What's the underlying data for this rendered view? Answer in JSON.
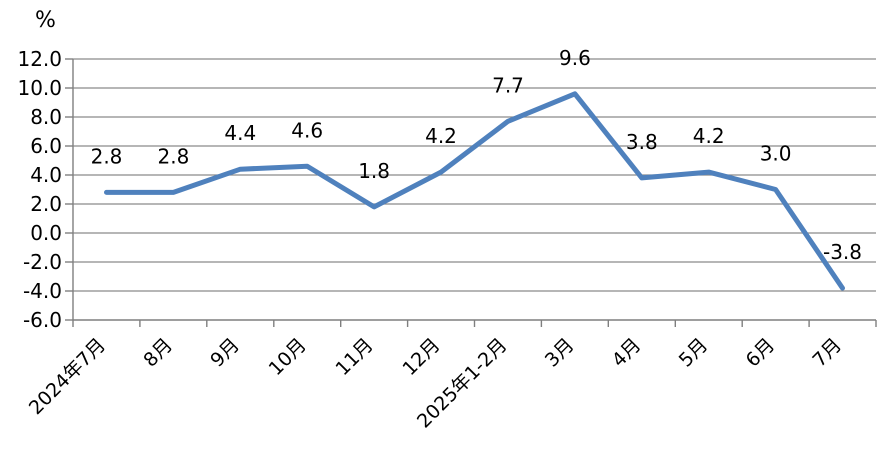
{
  "chart_data": {
    "type": "line",
    "title": "",
    "xlabel": "",
    "ylabel": "%",
    "categories": [
      "2024年7月",
      "8月",
      "9月",
      "10月",
      "11月",
      "12月",
      "2025年1-2月",
      "3月",
      "4月",
      "5月",
      "6月",
      "7月"
    ],
    "values": [
      2.8,
      2.8,
      4.4,
      4.6,
      1.8,
      4.2,
      7.7,
      9.6,
      3.8,
      4.2,
      3.0,
      -3.8
    ],
    "point_labels": [
      "2.8",
      "2.8",
      "4.4",
      "4.6",
      "1.8",
      "4.2",
      "7.7",
      "9.6",
      "3.8",
      "4.2",
      "3.0",
      "-3.8"
    ],
    "y_tick_values": [
      12,
      10,
      8,
      6,
      4,
      2,
      0,
      -2,
      -4,
      -6
    ],
    "y_tick_labels": [
      "12.0",
      "10.0",
      "8.0",
      "6.0",
      "4.0",
      "2.0",
      "0.0",
      "-2.0",
      "-4.0",
      "-6.0"
    ],
    "ylim": [
      -6,
      12
    ],
    "grid": true,
    "legend": "none",
    "colors": {
      "line": "#4f81bd",
      "grid": "#8a8a8a",
      "axis": "#7f7f7f",
      "text": "#000000",
      "background": "#ffffff"
    }
  }
}
